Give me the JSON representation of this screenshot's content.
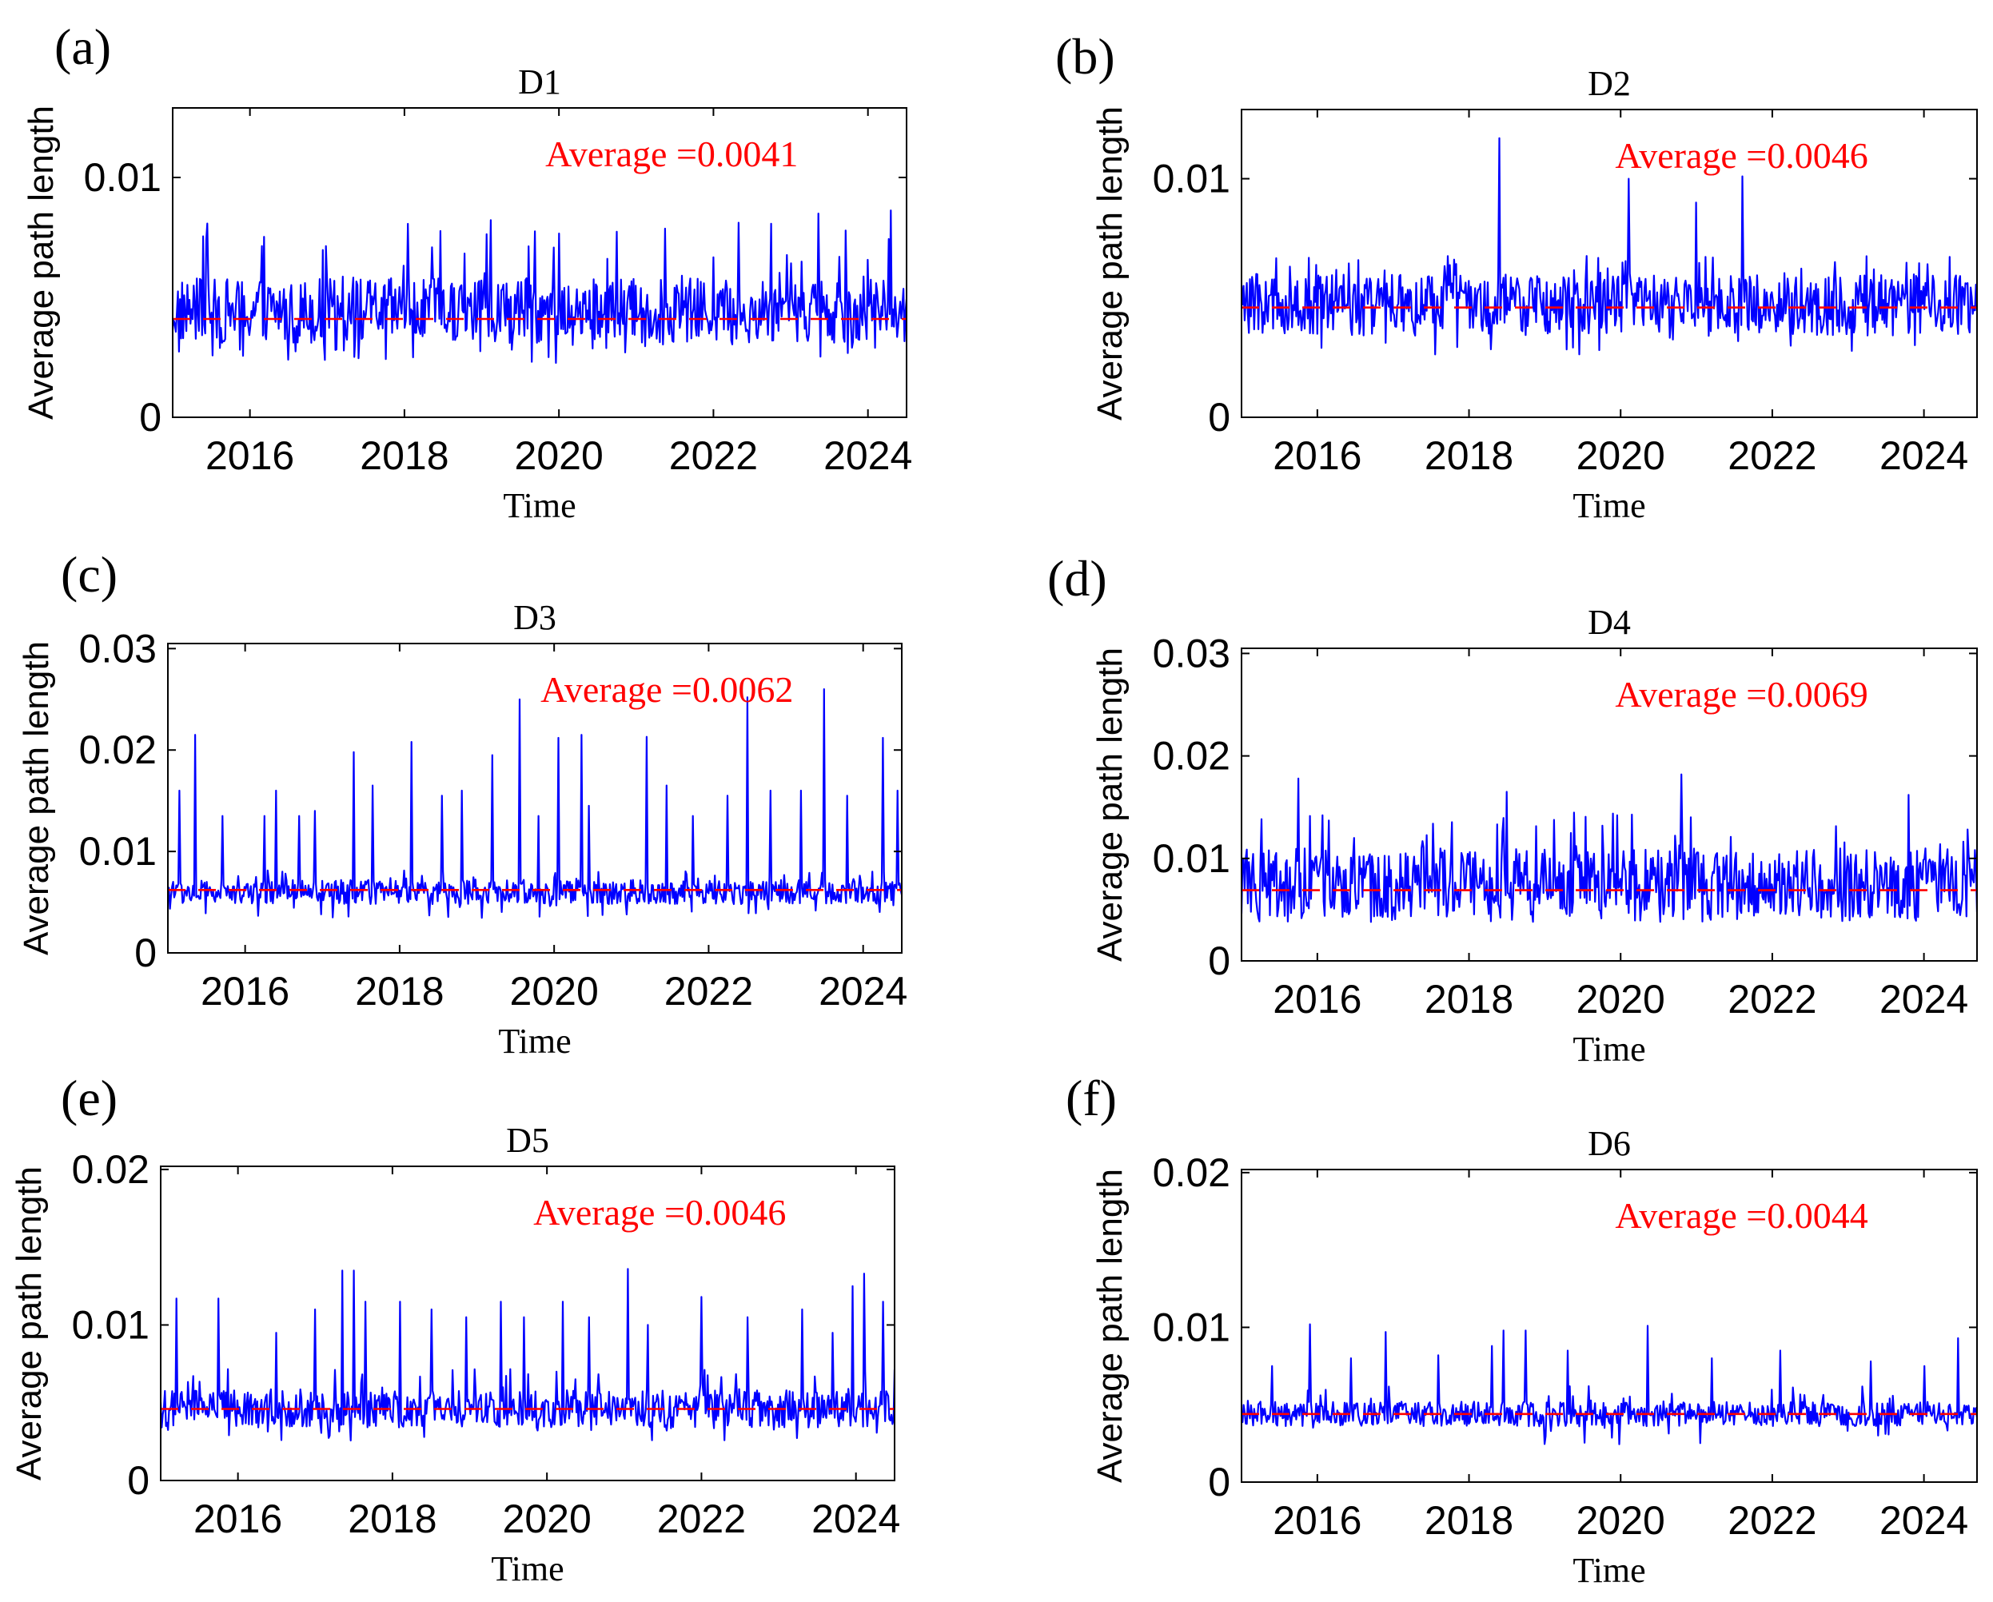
{
  "chart_data": [
    {
      "type": "line",
      "panel_label": "(a)",
      "title": "D1",
      "xlabel": "Time",
      "ylabel": "Average path length",
      "xlim": [
        2015,
        2024.5
      ],
      "ylim": [
        0,
        0.0129
      ],
      "xticks": [
        2016,
        2018,
        2020,
        2022,
        2024
      ],
      "yticks": [
        0,
        0.01
      ],
      "ytick_labels": [
        "0",
        "0.01"
      ],
      "series_color": "#0000ff",
      "baseline": 0.0041,
      "noise_range": [
        0.0031,
        0.0058
      ],
      "spike_max": 0.0087,
      "spikes": [],
      "average_value": 0.0041,
      "average_color": "#ff0000",
      "annotation": "Average =0.0041"
    },
    {
      "type": "line",
      "panel_label": "(b)",
      "title": "D2",
      "xlabel": "Time",
      "ylabel": "Average path length",
      "xlim": [
        2015,
        2024.7
      ],
      "ylim": [
        0,
        0.0129
      ],
      "xticks": [
        2016,
        2018,
        2020,
        2022,
        2024
      ],
      "yticks": [
        0,
        0.01
      ],
      "ytick_labels": [
        "0",
        "0.01"
      ],
      "series_color": "#0000ff",
      "baseline": 0.0046,
      "noise_range": [
        0.0034,
        0.006
      ],
      "spike_max": 0.0068,
      "spikes": [
        [
          2018.4,
          0.0117
        ],
        [
          2020.1,
          0.01
        ],
        [
          2021.0,
          0.009
        ],
        [
          2021.6,
          0.0101
        ]
      ],
      "average_value": 0.0046,
      "average_color": "#ff0000",
      "annotation": "Average =0.0046"
    },
    {
      "type": "line",
      "panel_label": "(c)",
      "title": "D3",
      "xlabel": "Time",
      "ylabel": "Average path length",
      "xlim": [
        2015,
        2024.5
      ],
      "ylim": [
        0,
        0.0305
      ],
      "xticks": [
        2016,
        2018,
        2020,
        2022,
        2024
      ],
      "yticks": [
        0,
        0.01,
        0.02,
        0.03
      ],
      "ytick_labels": [
        "0",
        "0.01",
        "0.02",
        "0.03"
      ],
      "series_color": "#0000ff",
      "baseline": 0.0062,
      "noise_range": [
        0.0048,
        0.0072
      ],
      "spike_max": 0.0082,
      "spikes": [
        [
          2015.15,
          0.016
        ],
        [
          2015.35,
          0.0215
        ],
        [
          2015.7,
          0.0135
        ],
        [
          2016.25,
          0.0135
        ],
        [
          2016.4,
          0.016
        ],
        [
          2016.7,
          0.0135
        ],
        [
          2016.9,
          0.014
        ],
        [
          2017.4,
          0.0198
        ],
        [
          2017.65,
          0.0165
        ],
        [
          2018.15,
          0.0208
        ],
        [
          2018.55,
          0.0155
        ],
        [
          2018.8,
          0.016
        ],
        [
          2019.2,
          0.0195
        ],
        [
          2019.55,
          0.025
        ],
        [
          2019.8,
          0.0135
        ],
        [
          2020.05,
          0.0212
        ],
        [
          2020.35,
          0.0215
        ],
        [
          2020.45,
          0.0145
        ],
        [
          2021.2,
          0.0213
        ],
        [
          2021.45,
          0.0165
        ],
        [
          2021.8,
          0.0135
        ],
        [
          2022.25,
          0.0155
        ],
        [
          2022.5,
          0.0252
        ],
        [
          2022.8,
          0.016
        ],
        [
          2023.2,
          0.016
        ],
        [
          2023.5,
          0.026
        ],
        [
          2023.8,
          0.0155
        ],
        [
          2024.25,
          0.0212
        ],
        [
          2024.45,
          0.016
        ]
      ],
      "average_value": 0.0062,
      "average_color": "#ff0000",
      "annotation": "Average =0.0062"
    },
    {
      "type": "line",
      "panel_label": "(d)",
      "title": "D4",
      "xlabel": "Time",
      "ylabel": "Average path length",
      "xlim": [
        2015,
        2024.7
      ],
      "ylim": [
        0,
        0.0305
      ],
      "xticks": [
        2016,
        2018,
        2020,
        2022,
        2024
      ],
      "yticks": [
        0,
        0.01,
        0.02,
        0.03
      ],
      "ytick_labels": [
        "0",
        "0.01",
        "0.02",
        "0.03"
      ],
      "series_color": "#0000ff",
      "baseline": 0.0069,
      "noise_range": [
        0.0042,
        0.011
      ],
      "spike_max": 0.0145,
      "spikes": [
        [
          2015.75,
          0.0178
        ],
        [
          2018.5,
          0.0165
        ],
        [
          2020.8,
          0.0182
        ],
        [
          2023.8,
          0.0162
        ]
      ],
      "average_value": 0.0069,
      "average_color": "#ff0000",
      "annotation": "Average =0.0069"
    },
    {
      "type": "line",
      "panel_label": "(e)",
      "title": "D5",
      "xlabel": "Time",
      "ylabel": "Average path length",
      "xlim": [
        2015,
        2024.5
      ],
      "ylim": [
        0,
        0.0202
      ],
      "xticks": [
        2016,
        2018,
        2020,
        2022,
        2024
      ],
      "yticks": [
        0,
        0.01,
        0.02
      ],
      "ytick_labels": [
        "0",
        "0.01",
        "0.02"
      ],
      "series_color": "#0000ff",
      "baseline": 0.0046,
      "noise_range": [
        0.0034,
        0.0058
      ],
      "spike_max": 0.0072,
      "spikes": [
        [
          2015.2,
          0.0117
        ],
        [
          2015.75,
          0.0117
        ],
        [
          2016.5,
          0.0095
        ],
        [
          2017.0,
          0.011
        ],
        [
          2017.35,
          0.0135
        ],
        [
          2017.5,
          0.0135
        ],
        [
          2017.65,
          0.0115
        ],
        [
          2018.1,
          0.0115
        ],
        [
          2018.5,
          0.011
        ],
        [
          2018.95,
          0.0105
        ],
        [
          2019.4,
          0.0115
        ],
        [
          2019.7,
          0.0105
        ],
        [
          2020.2,
          0.0115
        ],
        [
          2020.55,
          0.0105
        ],
        [
          2021.05,
          0.0136
        ],
        [
          2021.3,
          0.01
        ],
        [
          2022.0,
          0.0118
        ],
        [
          2022.6,
          0.0105
        ],
        [
          2023.3,
          0.011
        ],
        [
          2023.7,
          0.0095
        ],
        [
          2023.95,
          0.0125
        ],
        [
          2024.1,
          0.0133
        ],
        [
          2024.35,
          0.0115
        ]
      ],
      "average_value": 0.0046,
      "average_color": "#ff0000",
      "annotation": "Average =0.0046"
    },
    {
      "type": "line",
      "panel_label": "(f)",
      "title": "D6",
      "xlabel": "Time",
      "ylabel": "Average path length",
      "xlim": [
        2015,
        2024.7
      ],
      "ylim": [
        0,
        0.0202
      ],
      "xticks": [
        2016,
        2018,
        2020,
        2022,
        2024
      ],
      "yticks": [
        0,
        0.01,
        0.02
      ],
      "ytick_labels": [
        "0",
        "0.01",
        "0.02"
      ],
      "series_color": "#0000ff",
      "baseline": 0.0044,
      "noise_range": [
        0.0036,
        0.0052
      ],
      "spike_max": 0.0062,
      "spikes": [
        [
          2015.4,
          0.0075
        ],
        [
          2015.9,
          0.0102
        ],
        [
          2016.45,
          0.008
        ],
        [
          2016.9,
          0.0097
        ],
        [
          2017.6,
          0.0082
        ],
        [
          2018.3,
          0.0088
        ],
        [
          2018.45,
          0.0098
        ],
        [
          2018.75,
          0.0098
        ],
        [
          2019.3,
          0.0085
        ],
        [
          2020.35,
          0.0101
        ],
        [
          2021.2,
          0.008
        ],
        [
          2022.1,
          0.0085
        ],
        [
          2023.3,
          0.0078
        ],
        [
          2024.0,
          0.0075
        ],
        [
          2024.45,
          0.0093
        ]
      ],
      "average_value": 0.0044,
      "average_color": "#ff0000",
      "annotation": "Average =0.0044"
    }
  ]
}
